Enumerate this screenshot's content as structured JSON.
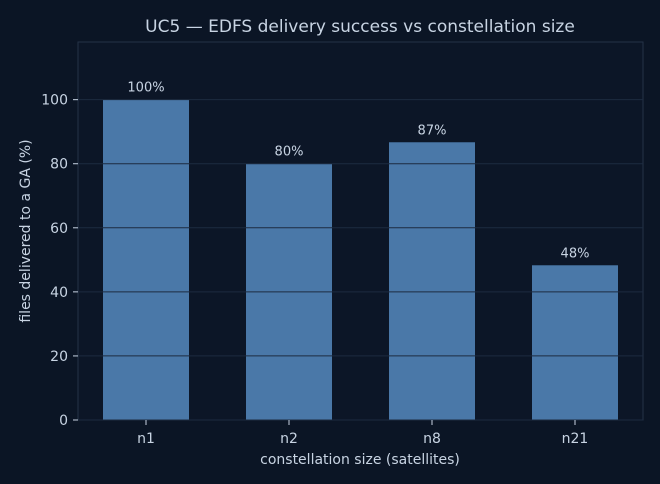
{
  "chart_data": {
    "type": "bar",
    "title": "UC5 — EDFS delivery success vs constellation size",
    "xlabel": "constellation size (satellites)",
    "ylabel": "files delivered to a GA (%)",
    "categories": [
      "n1",
      "n2",
      "n8",
      "n21"
    ],
    "values": [
      100,
      80,
      86.7,
      48.3
    ],
    "data_labels": [
      "100%",
      "80%",
      "87%",
      "48%"
    ],
    "ylim": [
      0,
      118
    ],
    "yticks": [
      0,
      20,
      40,
      60,
      80,
      100
    ],
    "grid": true,
    "colors": {
      "background": "#0b1525",
      "plot_background": "#0c1627",
      "bar": "#4a78a8",
      "text": "#c8d4e3",
      "grid": "#1d2b40",
      "axis": "#3a4a60"
    }
  }
}
